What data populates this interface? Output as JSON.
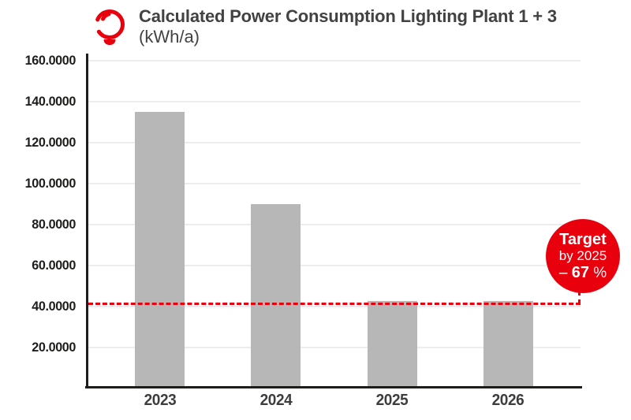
{
  "header": {
    "title_line1": "Calculated Power Consumption Lighting Plant 1 + 3",
    "title_line2": "(kWh/a)",
    "icon": "lightbulb-icon"
  },
  "chart_data": {
    "type": "bar",
    "title": "Calculated Power Consumption Lighting Plant 1 + 3 (kWh/a)",
    "categories": [
      "2023",
      "2024",
      "2025",
      "2026"
    ],
    "values": [
      135,
      90,
      42.5,
      42.5
    ],
    "y_tick_values": [
      160,
      140,
      120,
      100,
      80,
      60,
      40,
      20
    ],
    "y_tick_labels": [
      "160.0000",
      "140.0000",
      "120.0000",
      "100.0000",
      "80.0000",
      "60.0000",
      "40.0000",
      "20.0000"
    ],
    "ylim": [
      0,
      163
    ],
    "grid": true,
    "legend": false,
    "bar_color": "#b7b7b7",
    "target_line": {
      "value": 41.5,
      "style": "dashed",
      "color": "#e8000d",
      "label": "Target by 2025 – 67 %"
    }
  },
  "badge": {
    "line1": "Target",
    "line2": "by 2025",
    "line3_prefix": "– ",
    "line3_value": "67",
    "line3_suffix": " %",
    "bg_color": "#e8000d",
    "text_color": "#ffffff"
  },
  "colors": {
    "accent_red": "#e8000d",
    "bar_gray": "#b7b7b7",
    "title_gray": "#424242",
    "axis_black": "#1d1d1b",
    "grid_gray": "#ededed"
  }
}
